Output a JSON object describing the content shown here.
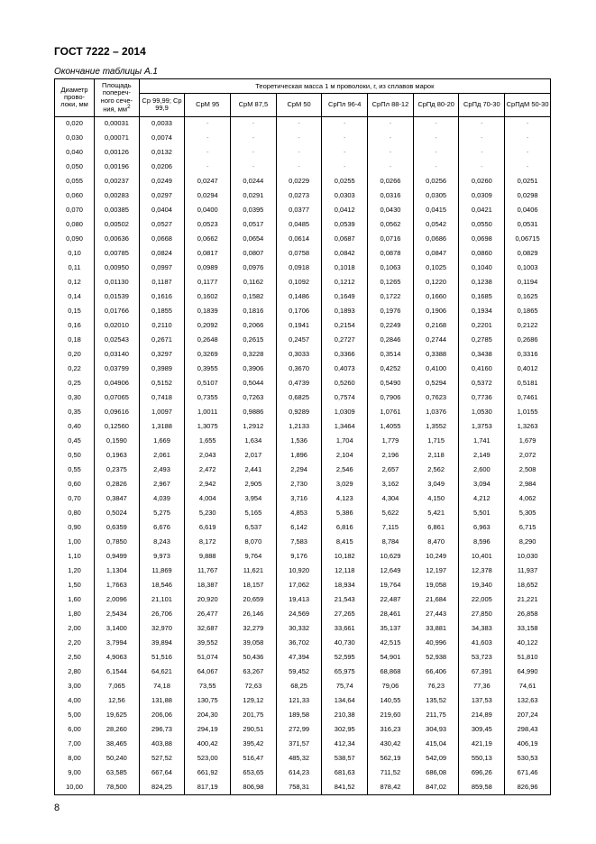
{
  "doc_header": "ГОСТ 7222 – 2014",
  "table_caption": "Окончание таблицы А.1",
  "page_number": "8",
  "header": {
    "col1": "Диаметр прово- локи, мм",
    "col2_l1": "Площадь попереч- ного сече- ния, мм",
    "col2_sup": "2",
    "span": "Теоретическая масса 1 м проволоки, г, из сплавов марок",
    "alloys": [
      "Ср 99,99; Ср 99,9",
      "СрМ 95",
      "СрМ 87,5",
      "СрМ 50",
      "СрПл 96-4",
      "СрПл 88-12",
      "СрПд 80-20",
      "СрПд 70-30",
      "СрПдМ 50-30"
    ]
  },
  "rows": [
    [
      "0,020",
      "0,00031",
      "0,0033",
      "-",
      "-",
      "-",
      "-",
      "-",
      "-",
      "-",
      "-"
    ],
    [
      "0,030",
      "0,00071",
      "0,0074",
      "-",
      "-",
      "-",
      "-",
      "-",
      "-",
      "-",
      "-"
    ],
    [
      "0,040",
      "0,00126",
      "0,0132",
      "-",
      "-",
      "-",
      "-",
      "-",
      "-",
      "-",
      "-"
    ],
    [
      "0,050",
      "0,00196",
      "0,0206",
      "-",
      "-",
      "-",
      "-",
      "-",
      "-",
      "-",
      "-"
    ],
    [
      "0,055",
      "0,00237",
      "0,0249",
      "0,0247",
      "0,0244",
      "0,0229",
      "0,0255",
      "0,0266",
      "0,0256",
      "0,0260",
      "0,0251"
    ],
    [
      "0,060",
      "0,00283",
      "0,0297",
      "0,0294",
      "0,0291",
      "0,0273",
      "0,0303",
      "0,0316",
      "0,0305",
      "0,0309",
      "0,0298"
    ],
    [
      "0,070",
      "0,00385",
      "0,0404",
      "0,0400",
      "0,0395",
      "0,0377",
      "0,0412",
      "0,0430",
      "0,0415",
      "0,0421",
      "0,0406"
    ],
    [
      "0,080",
      "0,00502",
      "0,0527",
      "0,0523",
      "0,0517",
      "0,0485",
      "0,0539",
      "0,0562",
      "0,0542",
      "0,0550",
      "0,0531"
    ],
    [
      "0,090",
      "0,00636",
      "0,0668",
      "0,0662",
      "0,0654",
      "0,0614",
      "0,0687",
      "0,0716",
      "0,0686",
      "0,0698",
      "0,06715"
    ],
    [
      "0,10",
      "0,00785",
      "0,0824",
      "0,0817",
      "0,0807",
      "0,0758",
      "0,0842",
      "0,0878",
      "0,0847",
      "0,0860",
      "0,0829"
    ],
    [
      "0,11",
      "0,00950",
      "0,0997",
      "0,0989",
      "0,0976",
      "0,0918",
      "0,1018",
      "0,1063",
      "0,1025",
      "0,1040",
      "0,1003"
    ],
    [
      "0,12",
      "0,01130",
      "0,1187",
      "0,1177",
      "0,1162",
      "0,1092",
      "0,1212",
      "0,1265",
      "0,1220",
      "0,1238",
      "0,1194"
    ],
    [
      "0,14",
      "0,01539",
      "0,1616",
      "0,1602",
      "0,1582",
      "0,1486",
      "0,1649",
      "0,1722",
      "0,1660",
      "0,1685",
      "0,1625"
    ],
    [
      "0,15",
      "0,01766",
      "0,1855",
      "0,1839",
      "0,1816",
      "0,1706",
      "0,1893",
      "0,1976",
      "0,1906",
      "0,1934",
      "0,1865"
    ],
    [
      "0,16",
      "0,02010",
      "0,2110",
      "0,2092",
      "0,2066",
      "0,1941",
      "0,2154",
      "0,2249",
      "0,2168",
      "0,2201",
      "0,2122"
    ],
    [
      "0,18",
      "0,02543",
      "0,2671",
      "0,2648",
      "0,2615",
      "0,2457",
      "0,2727",
      "0,2846",
      "0,2744",
      "0,2785",
      "0,2686"
    ],
    [
      "0,20",
      "0,03140",
      "0,3297",
      "0,3269",
      "0,3228",
      "0,3033",
      "0,3366",
      "0,3514",
      "0,3388",
      "0,3438",
      "0,3316"
    ],
    [
      "0,22",
      "0,03799",
      "0,3989",
      "0,3955",
      "0,3906",
      "0,3670",
      "0,4073",
      "0,4252",
      "0,4100",
      "0,4160",
      "0,4012"
    ],
    [
      "0,25",
      "0,04906",
      "0,5152",
      "0,5107",
      "0,5044",
      "0,4739",
      "0,5260",
      "0,5490",
      "0,5294",
      "0,5372",
      "0,5181"
    ],
    [
      "0,30",
      "0,07065",
      "0,7418",
      "0,7355",
      "0,7263",
      "0,6825",
      "0,7574",
      "0,7906",
      "0,7623",
      "0,7736",
      "0,7461"
    ],
    [
      "0,35",
      "0,09616",
      "1,0097",
      "1,0011",
      "0,9886",
      "0,9289",
      "1,0309",
      "1,0761",
      "1,0376",
      "1,0530",
      "1,0155"
    ],
    [
      "0,40",
      "0,12560",
      "1,3188",
      "1,3075",
      "1,2912",
      "1,2133",
      "1,3464",
      "1,4055",
      "1,3552",
      "1,3753",
      "1,3263"
    ],
    [
      "0,45",
      "0,1590",
      "1,669",
      "1,655",
      "1,634",
      "1,536",
      "1,704",
      "1,779",
      "1,715",
      "1,741",
      "1,679"
    ],
    [
      "0,50",
      "0,1963",
      "2,061",
      "2,043",
      "2,017",
      "1,896",
      "2,104",
      "2,196",
      "2,118",
      "2,149",
      "2,072"
    ],
    [
      "0,55",
      "0,2375",
      "2,493",
      "2,472",
      "2,441",
      "2,294",
      "2,546",
      "2,657",
      "2,562",
      "2,600",
      "2,508"
    ],
    [
      "0,60",
      "0,2826",
      "2,967",
      "2,942",
      "2,905",
      "2,730",
      "3,029",
      "3,162",
      "3,049",
      "3,094",
      "2,984"
    ],
    [
      "0,70",
      "0,3847",
      "4,039",
      "4,004",
      "3,954",
      "3,716",
      "4,123",
      "4,304",
      "4,150",
      "4,212",
      "4,062"
    ],
    [
      "0,80",
      "0,5024",
      "5,275",
      "5,230",
      "5,165",
      "4,853",
      "5,386",
      "5,622",
      "5,421",
      "5,501",
      "5,305"
    ],
    [
      "0,90",
      "0,6359",
      "6,676",
      "6,619",
      "6,537",
      "6,142",
      "6,816",
      "7,115",
      "6,861",
      "6,963",
      "6,715"
    ],
    [
      "1,00",
      "0,7850",
      "8,243",
      "8,172",
      "8,070",
      "7,583",
      "8,415",
      "8,784",
      "8,470",
      "8,596",
      "8,290"
    ],
    [
      "1,10",
      "0,9499",
      "9,973",
      "9,888",
      "9,764",
      "9,176",
      "10,182",
      "10,629",
      "10,249",
      "10,401",
      "10,030"
    ],
    [
      "1,20",
      "1,1304",
      "11,869",
      "11,767",
      "11,621",
      "10,920",
      "12,118",
      "12,649",
      "12,197",
      "12,378",
      "11,937"
    ],
    [
      "1,50",
      "1,7663",
      "18,546",
      "18,387",
      "18,157",
      "17,062",
      "18,934",
      "19,764",
      "19,058",
      "19,340",
      "18,652"
    ],
    [
      "1,60",
      "2,0096",
      "21,101",
      "20,920",
      "20,659",
      "19,413",
      "21,543",
      "22,487",
      "21,684",
      "22,005",
      "21,221"
    ],
    [
      "1,80",
      "2,5434",
      "26,706",
      "26,477",
      "26,146",
      "24,569",
      "27,265",
      "28,461",
      "27,443",
      "27,850",
      "26,858"
    ],
    [
      "2,00",
      "3,1400",
      "32,970",
      "32,687",
      "32,279",
      "30,332",
      "33,661",
      "35,137",
      "33,881",
      "34,383",
      "33,158"
    ],
    [
      "2,20",
      "3,7994",
      "39,894",
      "39,552",
      "39,058",
      "36,702",
      "40,730",
      "42,515",
      "40,996",
      "41,603",
      "40,122"
    ],
    [
      "2,50",
      "4,9063",
      "51,516",
      "51,074",
      "50,436",
      "47,394",
      "52,595",
      "54,901",
      "52,938",
      "53,723",
      "51,810"
    ],
    [
      "2,80",
      "6,1544",
      "64,621",
      "64,067",
      "63,267",
      "59,452",
      "65,975",
      "68,868",
      "66,406",
      "67,391",
      "64,990"
    ],
    [
      "3,00",
      "7,065",
      "74,18",
      "73,55",
      "72,63",
      "68,25",
      "75,74",
      "79,06",
      "76,23",
      "77,36",
      "74,61"
    ],
    [
      "4,00",
      "12,56",
      "131,88",
      "130,75",
      "129,12",
      "121,33",
      "134,64",
      "140,55",
      "135,52",
      "137,53",
      "132,63"
    ],
    [
      "5,00",
      "19,625",
      "206,06",
      "204,30",
      "201,75",
      "189,58",
      "210,38",
      "219,60",
      "211,75",
      "214,89",
      "207,24"
    ],
    [
      "6,00",
      "28,260",
      "296,73",
      "294,19",
      "290,51",
      "272,99",
      "302,95",
      "316,23",
      "304,93",
      "309,45",
      "298,43"
    ],
    [
      "7,00",
      "38,465",
      "403,88",
      "400,42",
      "395,42",
      "371,57",
      "412,34",
      "430,42",
      "415,04",
      "421,19",
      "406,19"
    ],
    [
      "8,00",
      "50,240",
      "527,52",
      "523,00",
      "516,47",
      "485,32",
      "538,57",
      "562,19",
      "542,09",
      "550,13",
      "530,53"
    ],
    [
      "9,00",
      "63,585",
      "667,64",
      "661,92",
      "653,65",
      "614,23",
      "681,63",
      "711,52",
      "686,08",
      "696,26",
      "671,46"
    ],
    [
      "10,00",
      "78,500",
      "824,25",
      "817,19",
      "806,98",
      "758,31",
      "841,52",
      "878,42",
      "847,02",
      "859,58",
      "826,96"
    ]
  ]
}
